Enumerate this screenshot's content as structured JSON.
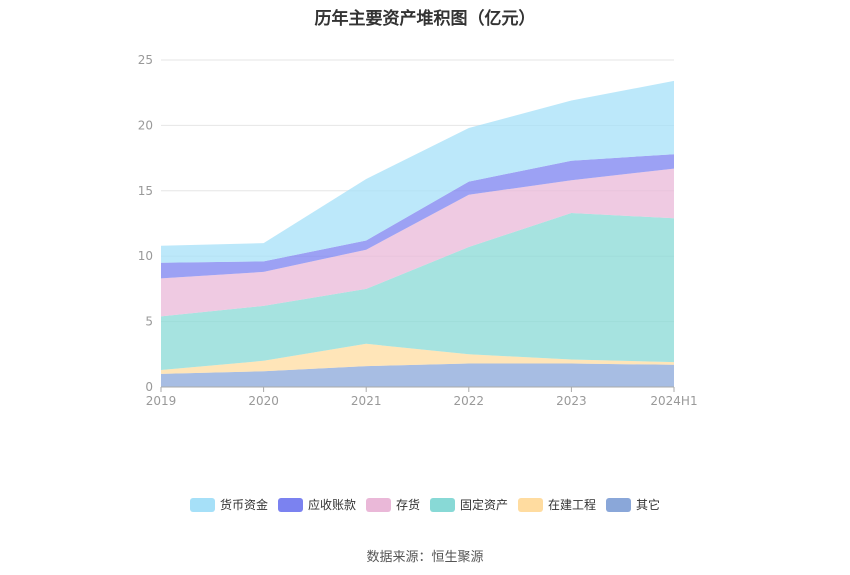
{
  "chart_data": {
    "type": "area",
    "stacked": true,
    "title": "历年主要资产堆积图（亿元）",
    "xlabel": "",
    "ylabel": "",
    "categories": [
      "2019",
      "2020",
      "2021",
      "2022",
      "2023",
      "2024H1"
    ],
    "ylim": [
      0,
      25
    ],
    "yticks": [
      0,
      5,
      10,
      15,
      20,
      25
    ],
    "grid": true,
    "legend_position": "bottom",
    "series": [
      {
        "name": "其它",
        "values": [
          1.0,
          1.2,
          1.6,
          1.8,
          1.8,
          1.7
        ],
        "color": "#8aa7d9"
      },
      {
        "name": "在建工程",
        "values": [
          0.3,
          0.8,
          1.7,
          0.7,
          0.3,
          0.2
        ],
        "color": "#ffdca0"
      },
      {
        "name": "固定资产",
        "values": [
          4.1,
          4.2,
          4.2,
          8.2,
          11.2,
          11.0
        ],
        "color": "#88d9d6"
      },
      {
        "name": "存货",
        "values": [
          2.9,
          2.6,
          3.0,
          4.0,
          2.5,
          3.8
        ],
        "color": "#eab8d8"
      },
      {
        "name": "应收账款",
        "values": [
          1.2,
          0.8,
          0.7,
          1.0,
          1.5,
          1.1
        ],
        "color": "#7b82f0"
      },
      {
        "name": "货币资金",
        "values": [
          1.3,
          1.4,
          4.7,
          4.1,
          4.6,
          5.6
        ],
        "color": "#a6e0f8"
      }
    ],
    "legend_order": [
      "货币资金",
      "应收账款",
      "存货",
      "固定资产",
      "在建工程",
      "其它"
    ]
  },
  "source": "数据来源：恒生聚源"
}
